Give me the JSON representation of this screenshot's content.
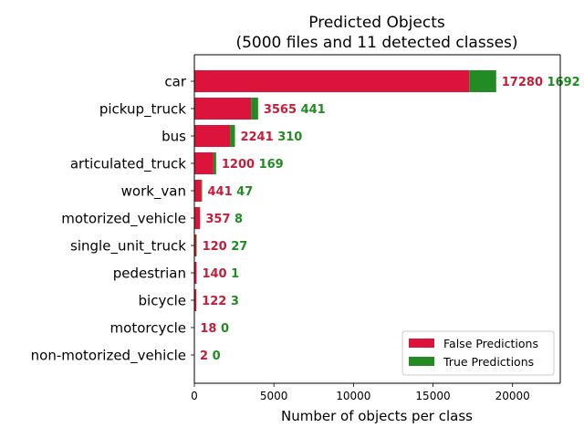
{
  "chart_data": {
    "type": "bar",
    "orientation": "horizontal",
    "stacked": true,
    "title_line1": "Predicted Objects",
    "title_line2": "(5000 files and 11 detected classes)",
    "xlabel": "Number of objects per class",
    "ylabel": "",
    "xlim": [
      0,
      23000
    ],
    "xticks": [
      0,
      5000,
      10000,
      15000,
      20000
    ],
    "xtick_labels": [
      "0",
      "5000",
      "10000",
      "15000",
      "20000"
    ],
    "grid": false,
    "legend_position": "lower-right",
    "categories": [
      "car",
      "pickup_truck",
      "bus",
      "articulated_truck",
      "work_van",
      "motorized_vehicle",
      "single_unit_truck",
      "pedestrian",
      "bicycle",
      "motorcycle",
      "non-motorized_vehicle"
    ],
    "series": [
      {
        "name": "False Predictions",
        "color": "#dc143c",
        "label_color": "#c41e3a",
        "values": [
          17280,
          3565,
          2241,
          1200,
          441,
          357,
          120,
          140,
          122,
          18,
          2
        ]
      },
      {
        "name": "True Predictions",
        "color": "#228b22",
        "label_color": "#228b22",
        "values": [
          1692,
          441,
          310,
          169,
          47,
          8,
          27,
          1,
          3,
          0,
          0
        ]
      }
    ]
  }
}
